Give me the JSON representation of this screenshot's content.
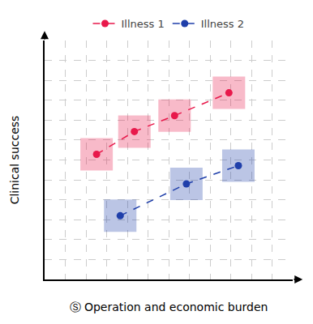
{
  "chart_data": {
    "type": "line",
    "xlabel": "Ⓢ Operation and economic burden",
    "ylabel": "Clinical success",
    "series": [
      {
        "name": "Illness 1",
        "color": "#e8194b",
        "x": [
          2.2,
          3.8,
          5.5,
          7.8
        ],
        "values": [
          5.5,
          6.5,
          7.2,
          8.2
        ]
      },
      {
        "name": "Illness 2",
        "color": "#1f3faa",
        "x": [
          3.2,
          6.0,
          8.2
        ],
        "values": [
          2.8,
          4.2,
          5.0
        ]
      }
    ],
    "marker": "circle",
    "line_style": "dashed",
    "xlim": [
      0,
      10.5
    ],
    "ylim": [
      0,
      10.5
    ],
    "xticks": [
      0,
      0.875,
      1.75,
      2.625,
      3.5,
      4.375,
      5.25,
      6.125,
      7,
      7.875,
      8.75,
      9.625,
      10.5
    ],
    "yticks": [
      0,
      0.875,
      1.75,
      2.625,
      3.5,
      4.375,
      5.25,
      6.125,
      7,
      7.875,
      8.75,
      9.625,
      10.5
    ],
    "grid": true,
    "tick_labels": false,
    "legend": "top"
  }
}
